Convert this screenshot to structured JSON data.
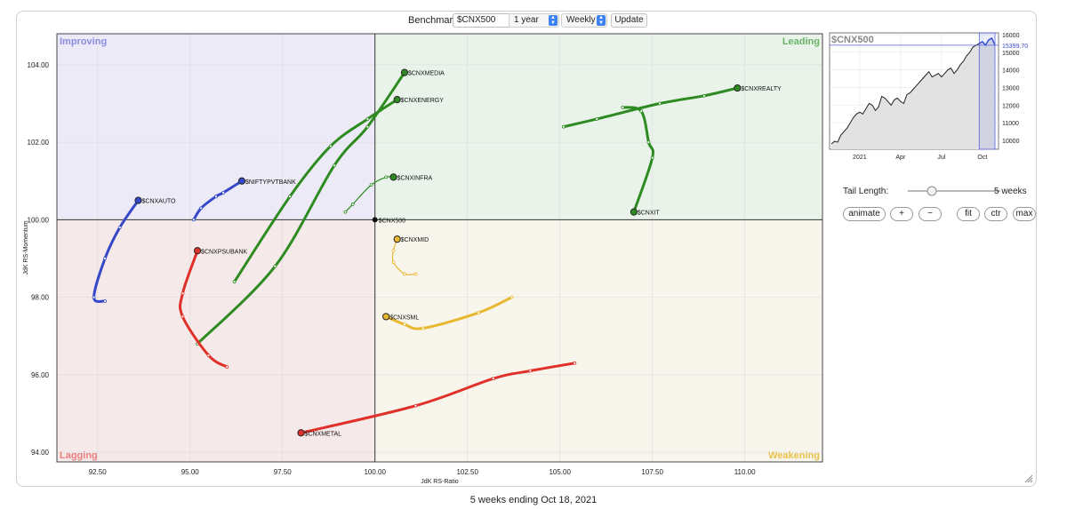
{
  "controls": {
    "benchmark_label": "Benchmark:",
    "benchmark_value": "$CNX500",
    "period_value": "1 year",
    "frequency_value": "Weekly",
    "update_label": "Update"
  },
  "side": {
    "tail_length_label": "Tail Length:",
    "tail_length_value": "5 weeks",
    "tail_slider_fraction": 0.25,
    "buttons": [
      "animate",
      "+",
      "−",
      "fit",
      "ctr",
      "max"
    ]
  },
  "caption": "5 weeks ending Oct 18, 2021",
  "colors": {
    "improving_bg": "#eceaf6",
    "leading_bg": "#e9f3e9",
    "lagging_bg": "#f6e9e9",
    "weakening_bg": "#f8f6ec",
    "improving_text": "#8c8ce0",
    "leading_text": "#6ab36a",
    "lagging_text": "#ea8080",
    "weakening_text": "#e8c04c"
  },
  "chart_data": [
    {
      "type": "scatter",
      "subtype": "relative-rotation-graph",
      "xlabel": "JdK RS-Ratio",
      "ylabel": "JdK RS-Momentum",
      "xlim": [
        91.4,
        112.1
      ],
      "ylim": [
        93.75,
        104.8
      ],
      "x_ticks": [
        "92.50",
        "95.00",
        "97.50",
        "100.00",
        "102.50",
        "105.00",
        "107.50",
        "110.00"
      ],
      "y_ticks": [
        "94.00",
        "96.00",
        "98.00",
        "100.00",
        "102.00",
        "104.00"
      ],
      "center": [
        100,
        100
      ],
      "quadrants": {
        "improving": "Improving",
        "leading": "Leading",
        "lagging": "Lagging",
        "weakening": "Weakening"
      },
      "benchmark_point": {
        "name": "$CNX500",
        "x": 100.0,
        "y": 100.0
      },
      "series": [
        {
          "name": "$CNXMEDIA",
          "color": "#2e8b22",
          "points": [
            [
              95.2,
              96.8
            ],
            [
              97.3,
              98.8
            ],
            [
              98.9,
              101.4
            ],
            [
              99.8,
              102.4
            ],
            [
              100.8,
              103.8
            ]
          ]
        },
        {
          "name": "$CNXENERGY",
          "color": "#2e8b22",
          "points": [
            [
              96.2,
              98.4
            ],
            [
              97.7,
              100.6
            ],
            [
              98.8,
              101.9
            ],
            [
              99.8,
              102.6
            ],
            [
              100.6,
              103.1
            ]
          ]
        },
        {
          "name": "$CNXINFRA",
          "color": "#2e8b22",
          "points": [
            [
              99.2,
              100.2
            ],
            [
              99.4,
              100.4
            ],
            [
              99.9,
              100.9
            ],
            [
              100.3,
              101.1
            ],
            [
              100.5,
              101.1
            ]
          ]
        },
        {
          "name": "$CNXREALTY",
          "color": "#2e8b22",
          "points": [
            [
              105.1,
              102.4
            ],
            [
              106.0,
              102.6
            ],
            [
              107.7,
              103.0
            ],
            [
              108.9,
              103.2
            ],
            [
              109.8,
              103.4
            ]
          ]
        },
        {
          "name": "$CNXIT",
          "color": "#2e8b22",
          "points": [
            [
              106.7,
              102.9
            ],
            [
              107.2,
              102.8
            ],
            [
              107.4,
              102.0
            ],
            [
              107.5,
              101.6
            ],
            [
              107.0,
              100.2
            ]
          ]
        },
        {
          "name": "$NIFTYPVTBANK",
          "color": "#3548c8",
          "points": [
            [
              95.1,
              100.0
            ],
            [
              95.3,
              100.3
            ],
            [
              95.7,
              100.6
            ],
            [
              95.9,
              100.7
            ],
            [
              96.4,
              101.0
            ]
          ]
        },
        {
          "name": "$CNXAUTO",
          "color": "#3548c8",
          "points": [
            [
              92.7,
              97.9
            ],
            [
              92.4,
              98.0
            ],
            [
              92.7,
              99.0
            ],
            [
              93.1,
              99.8
            ],
            [
              93.6,
              100.5
            ]
          ]
        },
        {
          "name": "$CNXPSUBANK",
          "color": "#e0302a",
          "points": [
            [
              96.0,
              96.2
            ],
            [
              95.5,
              96.5
            ],
            [
              94.8,
              97.5
            ],
            [
              94.8,
              98.1
            ],
            [
              95.2,
              99.2
            ]
          ]
        },
        {
          "name": "$CNXMETAL",
          "color": "#e0302a",
          "points": [
            [
              105.4,
              96.3
            ],
            [
              104.2,
              96.1
            ],
            [
              103.2,
              95.9
            ],
            [
              101.1,
              95.2
            ],
            [
              98.0,
              94.5
            ]
          ]
        },
        {
          "name": "$CNXMID",
          "color": "#e8b730",
          "points": [
            [
              101.1,
              98.6
            ],
            [
              100.8,
              98.6
            ],
            [
              100.5,
              98.9
            ],
            [
              100.5,
              99.2
            ],
            [
              100.6,
              99.5
            ]
          ]
        },
        {
          "name": "$CNXSML",
          "color": "#e8b730",
          "points": [
            [
              103.7,
              98.0
            ],
            [
              102.8,
              97.6
            ],
            [
              101.3,
              97.2
            ],
            [
              100.8,
              97.3
            ],
            [
              100.3,
              97.5
            ]
          ]
        }
      ]
    },
    {
      "type": "area",
      "title": "$CNX500",
      "x_ticks": [
        "2021",
        "Apr",
        "Jul",
        "Oct"
      ],
      "y_ticks": [
        "10000",
        "11000",
        "12000",
        "13000",
        "14000",
        "15000",
        "16000"
      ],
      "ylim": [
        9500,
        16100
      ],
      "current_value_label": "15399.70",
      "current_value": 15399.7,
      "values": [
        9800,
        9950,
        9900,
        10300,
        10500,
        10700,
        11000,
        11300,
        11500,
        11600,
        11500,
        11800,
        12100,
        12000,
        11700,
        11900,
        12500,
        12400,
        12200,
        12000,
        12300,
        12400,
        12200,
        12100,
        12600,
        12700,
        12900,
        13100,
        13300,
        13500,
        13700,
        13900,
        13600,
        13700,
        13800,
        13600,
        13800,
        14000,
        14100,
        13800,
        14000,
        14300,
        14500,
        14800,
        15000,
        15300,
        15400,
        15500,
        15600,
        15400,
        15700,
        15800,
        15400
      ]
    }
  ]
}
